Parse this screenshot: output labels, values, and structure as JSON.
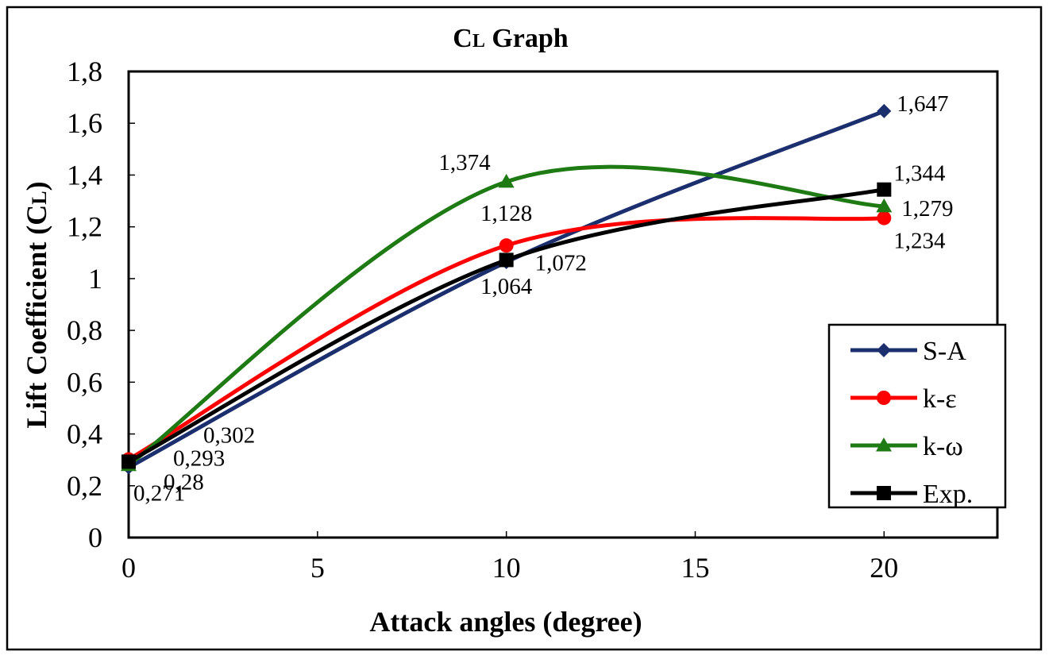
{
  "chart_data": {
    "type": "line",
    "title": {
      "main": "C",
      "sub": "L",
      "rest": " Graph"
    },
    "xlabel": "Attack angles (degree)",
    "ylabel": {
      "main": "Lift Coefficient (C",
      "sub": "L",
      "close": ")"
    },
    "x": [
      0,
      10,
      20
    ],
    "xlim": [
      0,
      23
    ],
    "ylim": [
      0,
      1.8
    ],
    "x_ticks": [
      0,
      5,
      10,
      15,
      20
    ],
    "x_tick_labels": [
      "0",
      "5",
      "10",
      "15",
      "20"
    ],
    "y_ticks": [
      0,
      0.2,
      0.4,
      0.6,
      0.8,
      1,
      1.2,
      1.4,
      1.6,
      1.8
    ],
    "y_tick_labels": [
      "0",
      "0,2",
      "0,4",
      "0,6",
      "0,8",
      "1",
      "1,2",
      "1,4",
      "1,6",
      "1,8"
    ],
    "grid": false,
    "smooth": true,
    "legend_position": "bottom-right",
    "series": [
      {
        "name": "S-A",
        "values": [
          0.271,
          1.064,
          1.647
        ],
        "labels": [
          "0,271",
          "1,064",
          "1,647"
        ],
        "color": "#1b2f6e",
        "marker": "diamond"
      },
      {
        "name": "k-ε",
        "values": [
          0.302,
          1.128,
          1.234
        ],
        "labels": [
          "0,302",
          "1,128",
          "1,234"
        ],
        "color": "#ff0000",
        "marker": "circle"
      },
      {
        "name": "k-ω",
        "values": [
          0.28,
          1.374,
          1.279
        ],
        "labels": [
          "0,28",
          "1,374",
          "1,279"
        ],
        "color": "#1e7a12",
        "marker": "triangle"
      },
      {
        "name": "Exp.",
        "values": [
          0.293,
          1.072,
          1.344
        ],
        "labels": [
          "0,293",
          "1,072",
          "1,344"
        ],
        "color": "#000000",
        "marker": "square"
      }
    ]
  }
}
